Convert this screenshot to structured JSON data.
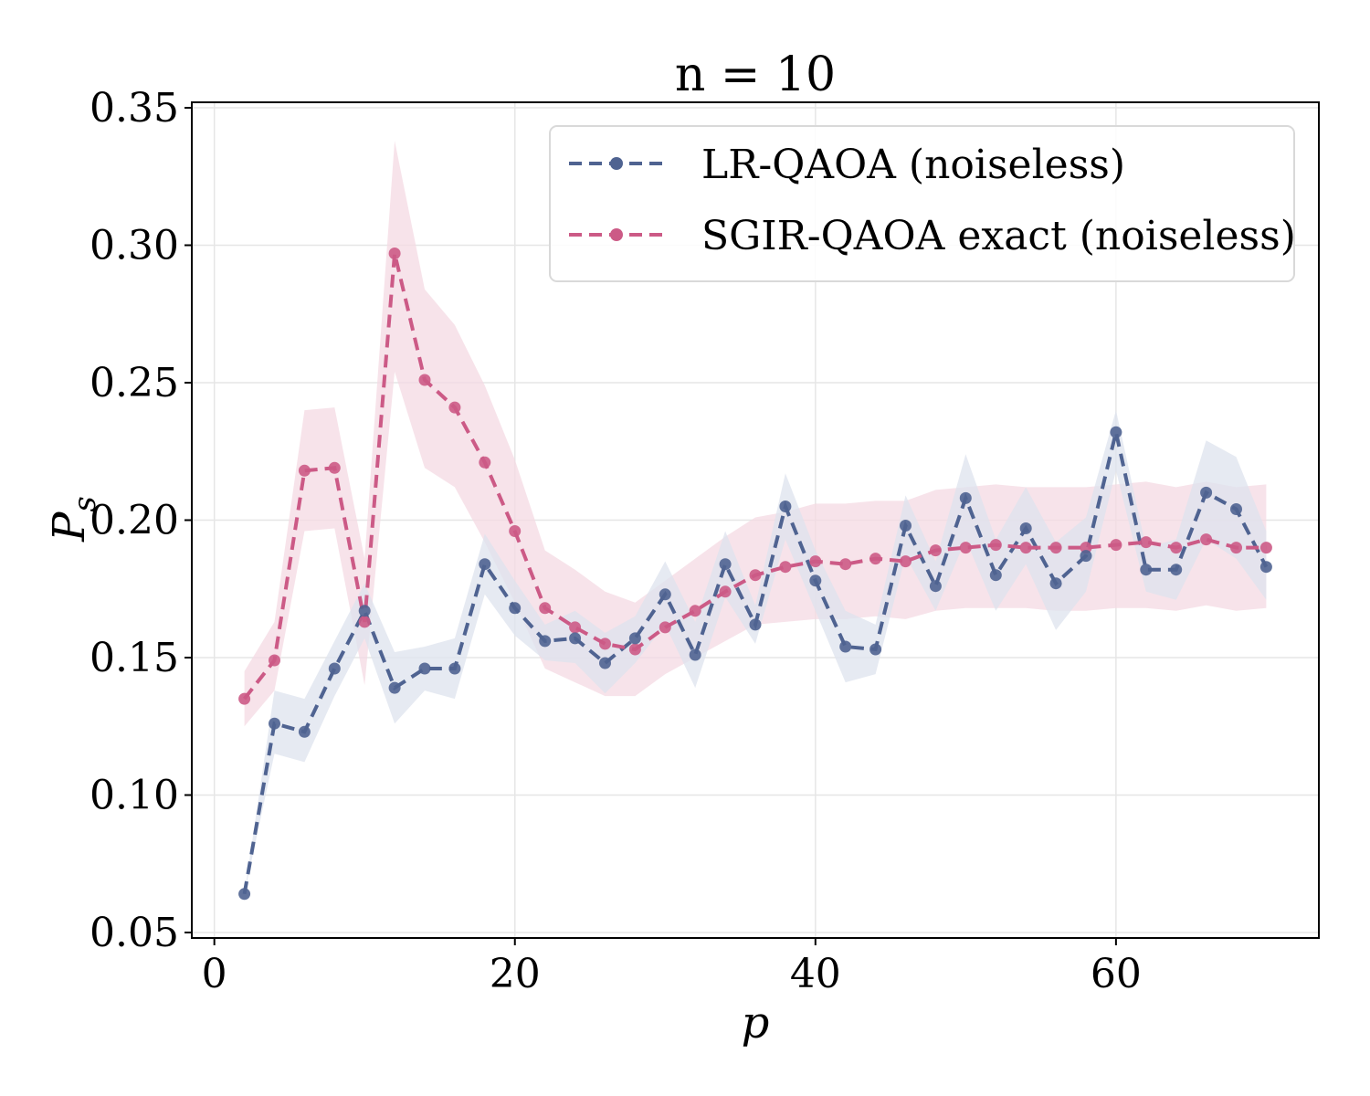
{
  "chart_data": {
    "type": "line",
    "title": "n = 10",
    "xlabel": "p",
    "ylabel": "P_s",
    "ylabel_main": "P",
    "ylabel_sub": "s",
    "xlim": [
      -1.5,
      73.5
    ],
    "ylim": [
      0.048,
      0.352
    ],
    "xticks": [
      0,
      20,
      40,
      60
    ],
    "xtick_labels": [
      "0",
      "20",
      "40",
      "60"
    ],
    "yticks": [
      0.05,
      0.1,
      0.15,
      0.2,
      0.25,
      0.3,
      0.35
    ],
    "ytick_labels": [
      "0.05",
      "0.10",
      "0.15",
      "0.20",
      "0.25",
      "0.30",
      "0.35"
    ],
    "grid": true,
    "legend_position": "top-right",
    "x": [
      2,
      4,
      6,
      8,
      10,
      12,
      14,
      16,
      18,
      20,
      22,
      24,
      26,
      28,
      30,
      32,
      34,
      36,
      38,
      40,
      42,
      44,
      46,
      48,
      50,
      52,
      54,
      56,
      58,
      60,
      62,
      64,
      66,
      68,
      70
    ],
    "series": [
      {
        "name": "LR-QAOA (noiseless)",
        "color": "#4f6391",
        "band_color": "#dde3ee",
        "values": [
          0.064,
          0.126,
          0.123,
          0.146,
          0.167,
          0.139,
          0.146,
          0.146,
          0.184,
          0.168,
          0.156,
          0.157,
          0.148,
          0.157,
          0.173,
          0.151,
          0.184,
          0.162,
          0.205,
          0.178,
          0.154,
          0.153,
          0.198,
          0.176,
          0.208,
          0.18,
          0.197,
          0.177,
          0.187,
          0.232,
          0.182,
          0.182,
          0.21,
          0.204,
          0.183
        ],
        "lower": [
          0.064,
          0.115,
          0.112,
          0.136,
          0.157,
          0.126,
          0.138,
          0.135,
          0.173,
          0.158,
          0.149,
          0.148,
          0.137,
          0.148,
          0.162,
          0.139,
          0.172,
          0.155,
          0.193,
          0.167,
          0.141,
          0.144,
          0.187,
          0.167,
          0.193,
          0.167,
          0.184,
          0.16,
          0.174,
          0.218,
          0.174,
          0.171,
          0.193,
          0.186,
          0.171
        ],
        "upper": [
          0.064,
          0.138,
          0.135,
          0.156,
          0.177,
          0.152,
          0.154,
          0.157,
          0.195,
          0.178,
          0.162,
          0.167,
          0.159,
          0.165,
          0.185,
          0.163,
          0.196,
          0.169,
          0.217,
          0.189,
          0.167,
          0.162,
          0.209,
          0.185,
          0.224,
          0.193,
          0.212,
          0.192,
          0.201,
          0.24,
          0.19,
          0.193,
          0.229,
          0.223,
          0.196
        ]
      },
      {
        "name": "SGIR-QAOA exact (noiseless)",
        "color": "#cc5a86",
        "band_color": "#f4dae3",
        "values": [
          0.135,
          0.149,
          0.218,
          0.219,
          0.163,
          0.297,
          0.251,
          0.241,
          0.221,
          0.196,
          0.168,
          0.161,
          0.155,
          0.153,
          0.161,
          0.167,
          0.174,
          0.18,
          0.183,
          0.185,
          0.184,
          0.186,
          0.185,
          0.189,
          0.19,
          0.191,
          0.19,
          0.19,
          0.19,
          0.191,
          0.192,
          0.19,
          0.193,
          0.19,
          0.19
        ],
        "lower": [
          0.125,
          0.138,
          0.196,
          0.197,
          0.14,
          0.254,
          0.219,
          0.212,
          0.192,
          0.17,
          0.146,
          0.141,
          0.136,
          0.136,
          0.144,
          0.15,
          0.156,
          0.162,
          0.163,
          0.164,
          0.164,
          0.165,
          0.164,
          0.167,
          0.168,
          0.168,
          0.168,
          0.167,
          0.167,
          0.168,
          0.168,
          0.167,
          0.169,
          0.167,
          0.168
        ],
        "upper": [
          0.145,
          0.163,
          0.24,
          0.241,
          0.186,
          0.338,
          0.284,
          0.271,
          0.249,
          0.222,
          0.189,
          0.182,
          0.174,
          0.17,
          0.178,
          0.186,
          0.194,
          0.201,
          0.203,
          0.206,
          0.206,
          0.207,
          0.207,
          0.211,
          0.212,
          0.213,
          0.212,
          0.212,
          0.212,
          0.213,
          0.214,
          0.212,
          0.214,
          0.212,
          0.213
        ]
      }
    ]
  }
}
